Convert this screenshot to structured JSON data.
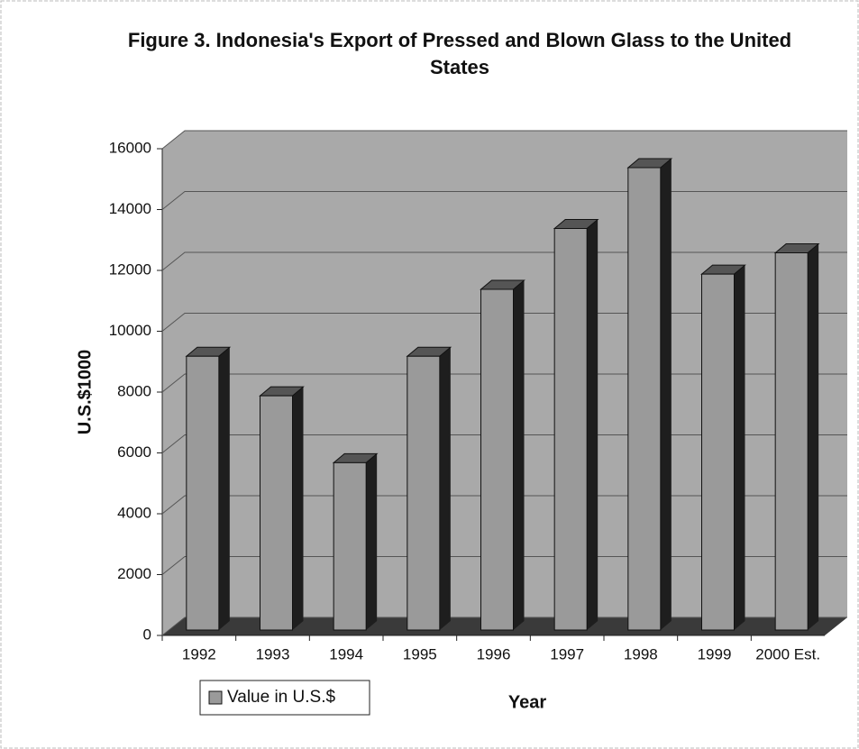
{
  "chart_data": {
    "type": "bar3d",
    "title": "Figure 3.  Indonesia's Export of Pressed and Blown Glass to the United States",
    "categories": [
      "1992",
      "1993",
      "1994",
      "1995",
      "1996",
      "1997",
      "1998",
      "1999",
      "2000 Est."
    ],
    "series": [
      {
        "name": "Value in U.S.$",
        "color": "#9a9a9a",
        "values": [
          9000,
          7700,
          5500,
          9000,
          11200,
          13200,
          15200,
          11700,
          12400
        ]
      }
    ],
    "x_label": "Year",
    "y_label": "U.S.$1000",
    "ylim": [
      0,
      16000
    ],
    "yticks": [
      0,
      2000,
      4000,
      6000,
      8000,
      10000,
      12000,
      14000,
      16000
    ],
    "grid": true,
    "legend": "bottom-left"
  }
}
